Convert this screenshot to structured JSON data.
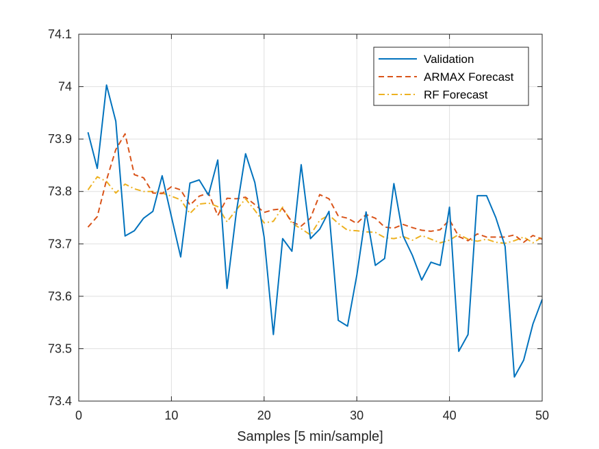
{
  "chart_data": {
    "type": "line",
    "xlabel": "Samples [5 min/sample]",
    "ylabel": "",
    "xlim": [
      0,
      50
    ],
    "ylim": [
      73.4,
      74.1
    ],
    "xticks": [
      "0",
      "10",
      "20",
      "30",
      "40",
      "50"
    ],
    "xtick_values": [
      0,
      10,
      20,
      30,
      40,
      50
    ],
    "yticks": [
      "73.4",
      "73.5",
      "73.6",
      "73.7",
      "73.8",
      "73.9",
      "74",
      "74.1"
    ],
    "ytick_values": [
      73.4,
      73.5,
      73.6,
      73.7,
      73.8,
      73.9,
      74.0,
      74.1
    ],
    "grid": true,
    "legend_position": "top-right",
    "x": [
      1,
      2,
      3,
      4,
      5,
      6,
      7,
      8,
      9,
      10,
      11,
      12,
      13,
      14,
      15,
      16,
      17,
      18,
      19,
      20,
      21,
      22,
      23,
      24,
      25,
      26,
      27,
      28,
      29,
      30,
      31,
      32,
      33,
      34,
      35,
      36,
      37,
      38,
      39,
      40,
      41,
      42,
      43,
      44,
      45,
      46,
      47,
      48,
      49,
      50
    ],
    "series": [
      {
        "name": "Validation",
        "color": "#0072BD",
        "style": "solid",
        "values": [
          73.913,
          73.844,
          74.003,
          73.934,
          73.715,
          73.725,
          73.749,
          73.762,
          73.83,
          73.752,
          73.675,
          73.816,
          73.822,
          73.793,
          73.86,
          73.615,
          73.76,
          73.872,
          73.817,
          73.713,
          73.527,
          73.71,
          73.686,
          73.851,
          73.71,
          73.728,
          73.762,
          73.554,
          73.543,
          73.64,
          73.761,
          73.659,
          73.672,
          73.815,
          73.715,
          73.678,
          73.631,
          73.665,
          73.659,
          73.77,
          73.495,
          73.527,
          73.792,
          73.792,
          73.75,
          73.695,
          73.446,
          73.478,
          73.547,
          73.594
        ]
      },
      {
        "name": "ARMAX Forecast",
        "color": "#D95319",
        "style": "dashed",
        "values": [
          73.732,
          73.752,
          73.822,
          73.88,
          73.91,
          73.832,
          73.826,
          73.797,
          73.796,
          73.809,
          73.803,
          73.774,
          73.791,
          73.797,
          73.754,
          73.787,
          73.786,
          73.789,
          73.775,
          73.76,
          73.765,
          73.767,
          73.742,
          73.734,
          73.749,
          73.794,
          73.786,
          73.753,
          73.749,
          73.739,
          73.756,
          73.749,
          73.732,
          73.73,
          73.737,
          73.731,
          73.726,
          73.724,
          73.727,
          73.746,
          73.714,
          73.706,
          73.719,
          73.713,
          73.713,
          73.713,
          73.717,
          73.703,
          73.716,
          73.709
        ]
      },
      {
        "name": "RF Forecast",
        "color": "#EDB120",
        "style": "dashdot",
        "values": [
          73.803,
          73.828,
          73.819,
          73.797,
          73.814,
          73.805,
          73.8,
          73.8,
          73.797,
          73.791,
          73.784,
          73.758,
          73.776,
          73.778,
          73.771,
          73.742,
          73.765,
          73.786,
          73.764,
          73.74,
          73.743,
          73.77,
          73.739,
          73.729,
          73.717,
          73.745,
          73.755,
          73.739,
          73.726,
          73.725,
          73.723,
          73.722,
          73.712,
          73.71,
          73.714,
          73.707,
          73.716,
          73.709,
          73.702,
          73.707,
          73.718,
          73.709,
          73.705,
          73.709,
          73.703,
          73.701,
          73.706,
          73.713,
          73.702,
          73.713
        ]
      }
    ]
  }
}
